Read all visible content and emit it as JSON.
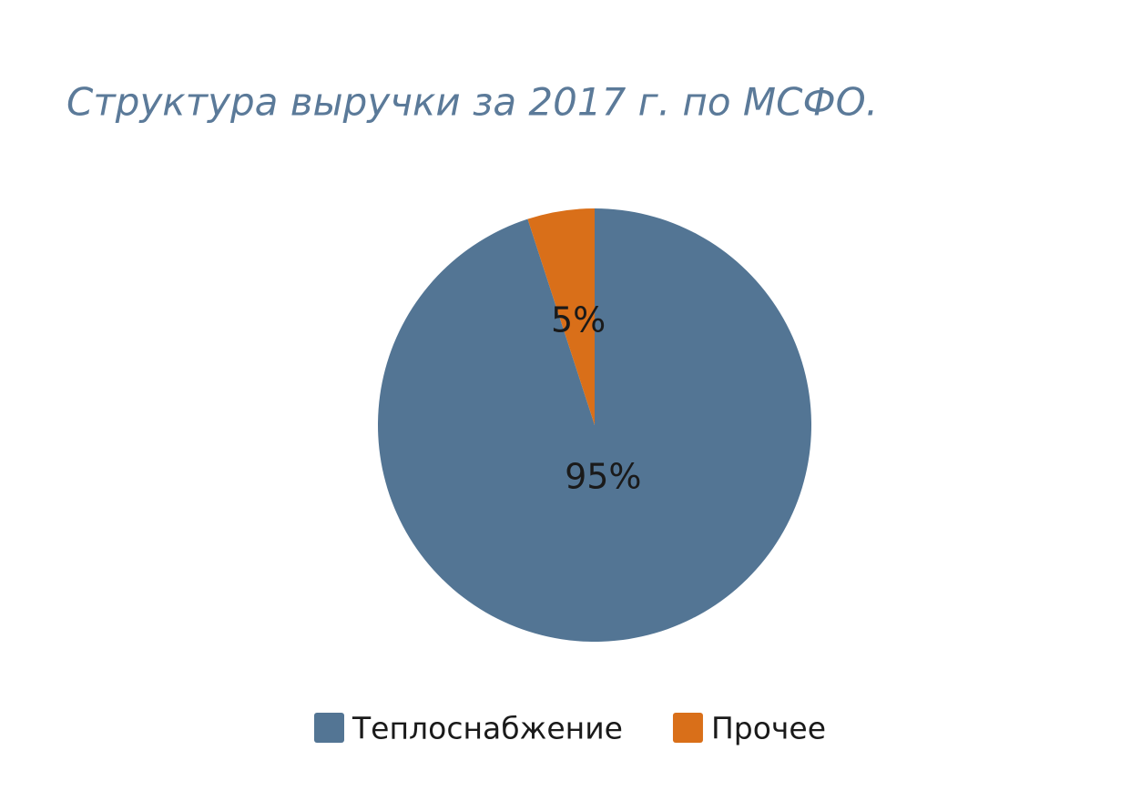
{
  "chart_data": {
    "type": "pie",
    "title": "Структура выручки за 2017 г. по МСФО.",
    "categories": [
      "Теплоснабжение",
      "Прочее"
    ],
    "values": [
      95,
      5
    ],
    "value_labels": [
      "95%",
      "5%"
    ],
    "colors": [
      "#537594",
      "#d96f19"
    ],
    "legend": "bottom"
  }
}
